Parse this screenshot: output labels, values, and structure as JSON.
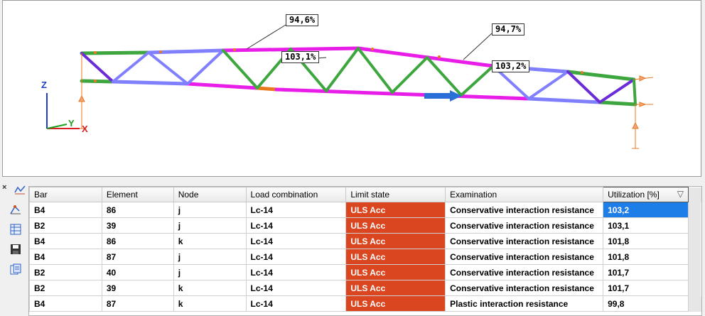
{
  "viewport": {
    "annotations": {
      "a1": "94,6%",
      "a2": "94,7%",
      "a3": "103,1%",
      "a4": "103,2%"
    },
    "axes": {
      "z": "Z",
      "y": "Y",
      "x": "X"
    },
    "colors": {
      "magenta": "#e81ee8",
      "green": "#3ea63e",
      "periwinkle": "#8080ff",
      "purple": "#6a2bd8",
      "orange": "#e87a1e",
      "blue_arrow": "#2a6fd8"
    }
  },
  "toolbar": {
    "close": "×",
    "icons": [
      "chart-icon",
      "structure-icon",
      "table-icon",
      "save-icon",
      "export-icon"
    ]
  },
  "table": {
    "headers": [
      "Bar",
      "Element",
      "Node",
      "Load combination",
      "Limit state",
      "Examination",
      "Utilization [%]"
    ],
    "filter_icon": "▽",
    "rows": [
      [
        "B4",
        "86",
        "j",
        "Lc-14",
        "ULS Acc",
        "Conservative interaction resistance",
        "103,2"
      ],
      [
        "B2",
        "39",
        "j",
        "Lc-14",
        "ULS Acc",
        "Conservative interaction resistance",
        "103,1"
      ],
      [
        "B4",
        "86",
        "k",
        "Lc-14",
        "ULS Acc",
        "Conservative interaction resistance",
        "101,8"
      ],
      [
        "B4",
        "87",
        "j",
        "Lc-14",
        "ULS Acc",
        "Conservative interaction resistance",
        "101,8"
      ],
      [
        "B2",
        "40",
        "j",
        "Lc-14",
        "ULS Acc",
        "Conservative interaction resistance",
        "101,7"
      ],
      [
        "B2",
        "39",
        "k",
        "Lc-14",
        "ULS Acc",
        "Conservative interaction resistance",
        "101,7"
      ],
      [
        "B4",
        "87",
        "k",
        "Lc-14",
        "ULS Acc",
        "Plastic interaction resistance",
        "99,8"
      ]
    ]
  }
}
